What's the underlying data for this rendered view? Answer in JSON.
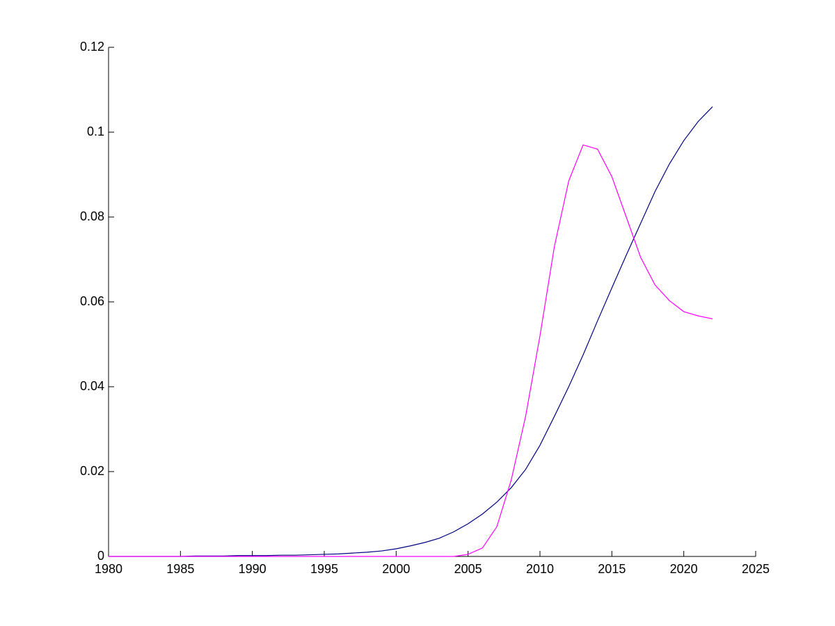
{
  "chart_data": {
    "type": "line",
    "x": [
      1980,
      1981,
      1982,
      1983,
      1984,
      1985,
      1986,
      1987,
      1988,
      1989,
      1990,
      1991,
      1992,
      1993,
      1994,
      1995,
      1996,
      1997,
      1998,
      1999,
      2000,
      2001,
      2002,
      2003,
      2004,
      2005,
      2006,
      2007,
      2008,
      2009,
      2010,
      2011,
      2012,
      2013,
      2014,
      2015,
      2016,
      2017,
      2018,
      2019,
      2020,
      2021,
      2022
    ],
    "series": [
      {
        "color": "#000080",
        "values": [
          0,
          0,
          0,
          0,
          0,
          0,
          0.0001,
          0.0001,
          0.0001,
          0.0002,
          0.0002,
          0.0002,
          0.0003,
          0.0003,
          0.0004,
          0.0005,
          0.0006,
          0.0008,
          0.001,
          0.0013,
          0.0018,
          0.0025,
          0.0033,
          0.0043,
          0.0058,
          0.0077,
          0.01,
          0.0128,
          0.0162,
          0.0205,
          0.0262,
          0.033,
          0.04,
          0.0475,
          0.0555,
          0.0633,
          0.071,
          0.0785,
          0.086,
          0.0925,
          0.098,
          0.1025,
          0.106
        ]
      },
      {
        "color": "#ff00ff",
        "values": [
          0,
          0,
          0,
          0,
          0,
          0,
          0,
          0,
          0,
          0,
          0,
          0,
          0,
          0,
          0,
          0,
          0,
          0,
          0,
          0,
          0,
          0,
          0,
          0,
          0,
          0.0005,
          0.002,
          0.007,
          0.018,
          0.033,
          0.052,
          0.073,
          0.0885,
          0.097,
          0.096,
          0.0895,
          0.08,
          0.0705,
          0.064,
          0.0603,
          0.0577,
          0.0567,
          0.056
        ]
      }
    ],
    "xlim": [
      1980,
      2025
    ],
    "xticks": [
      1980,
      1985,
      1990,
      1995,
      2000,
      2005,
      2010,
      2015,
      2020,
      2025
    ],
    "ylim": [
      0,
      0.12
    ],
    "yticks": [
      0,
      0.02,
      0.04,
      0.06,
      0.08,
      0.1,
      0.12
    ]
  }
}
